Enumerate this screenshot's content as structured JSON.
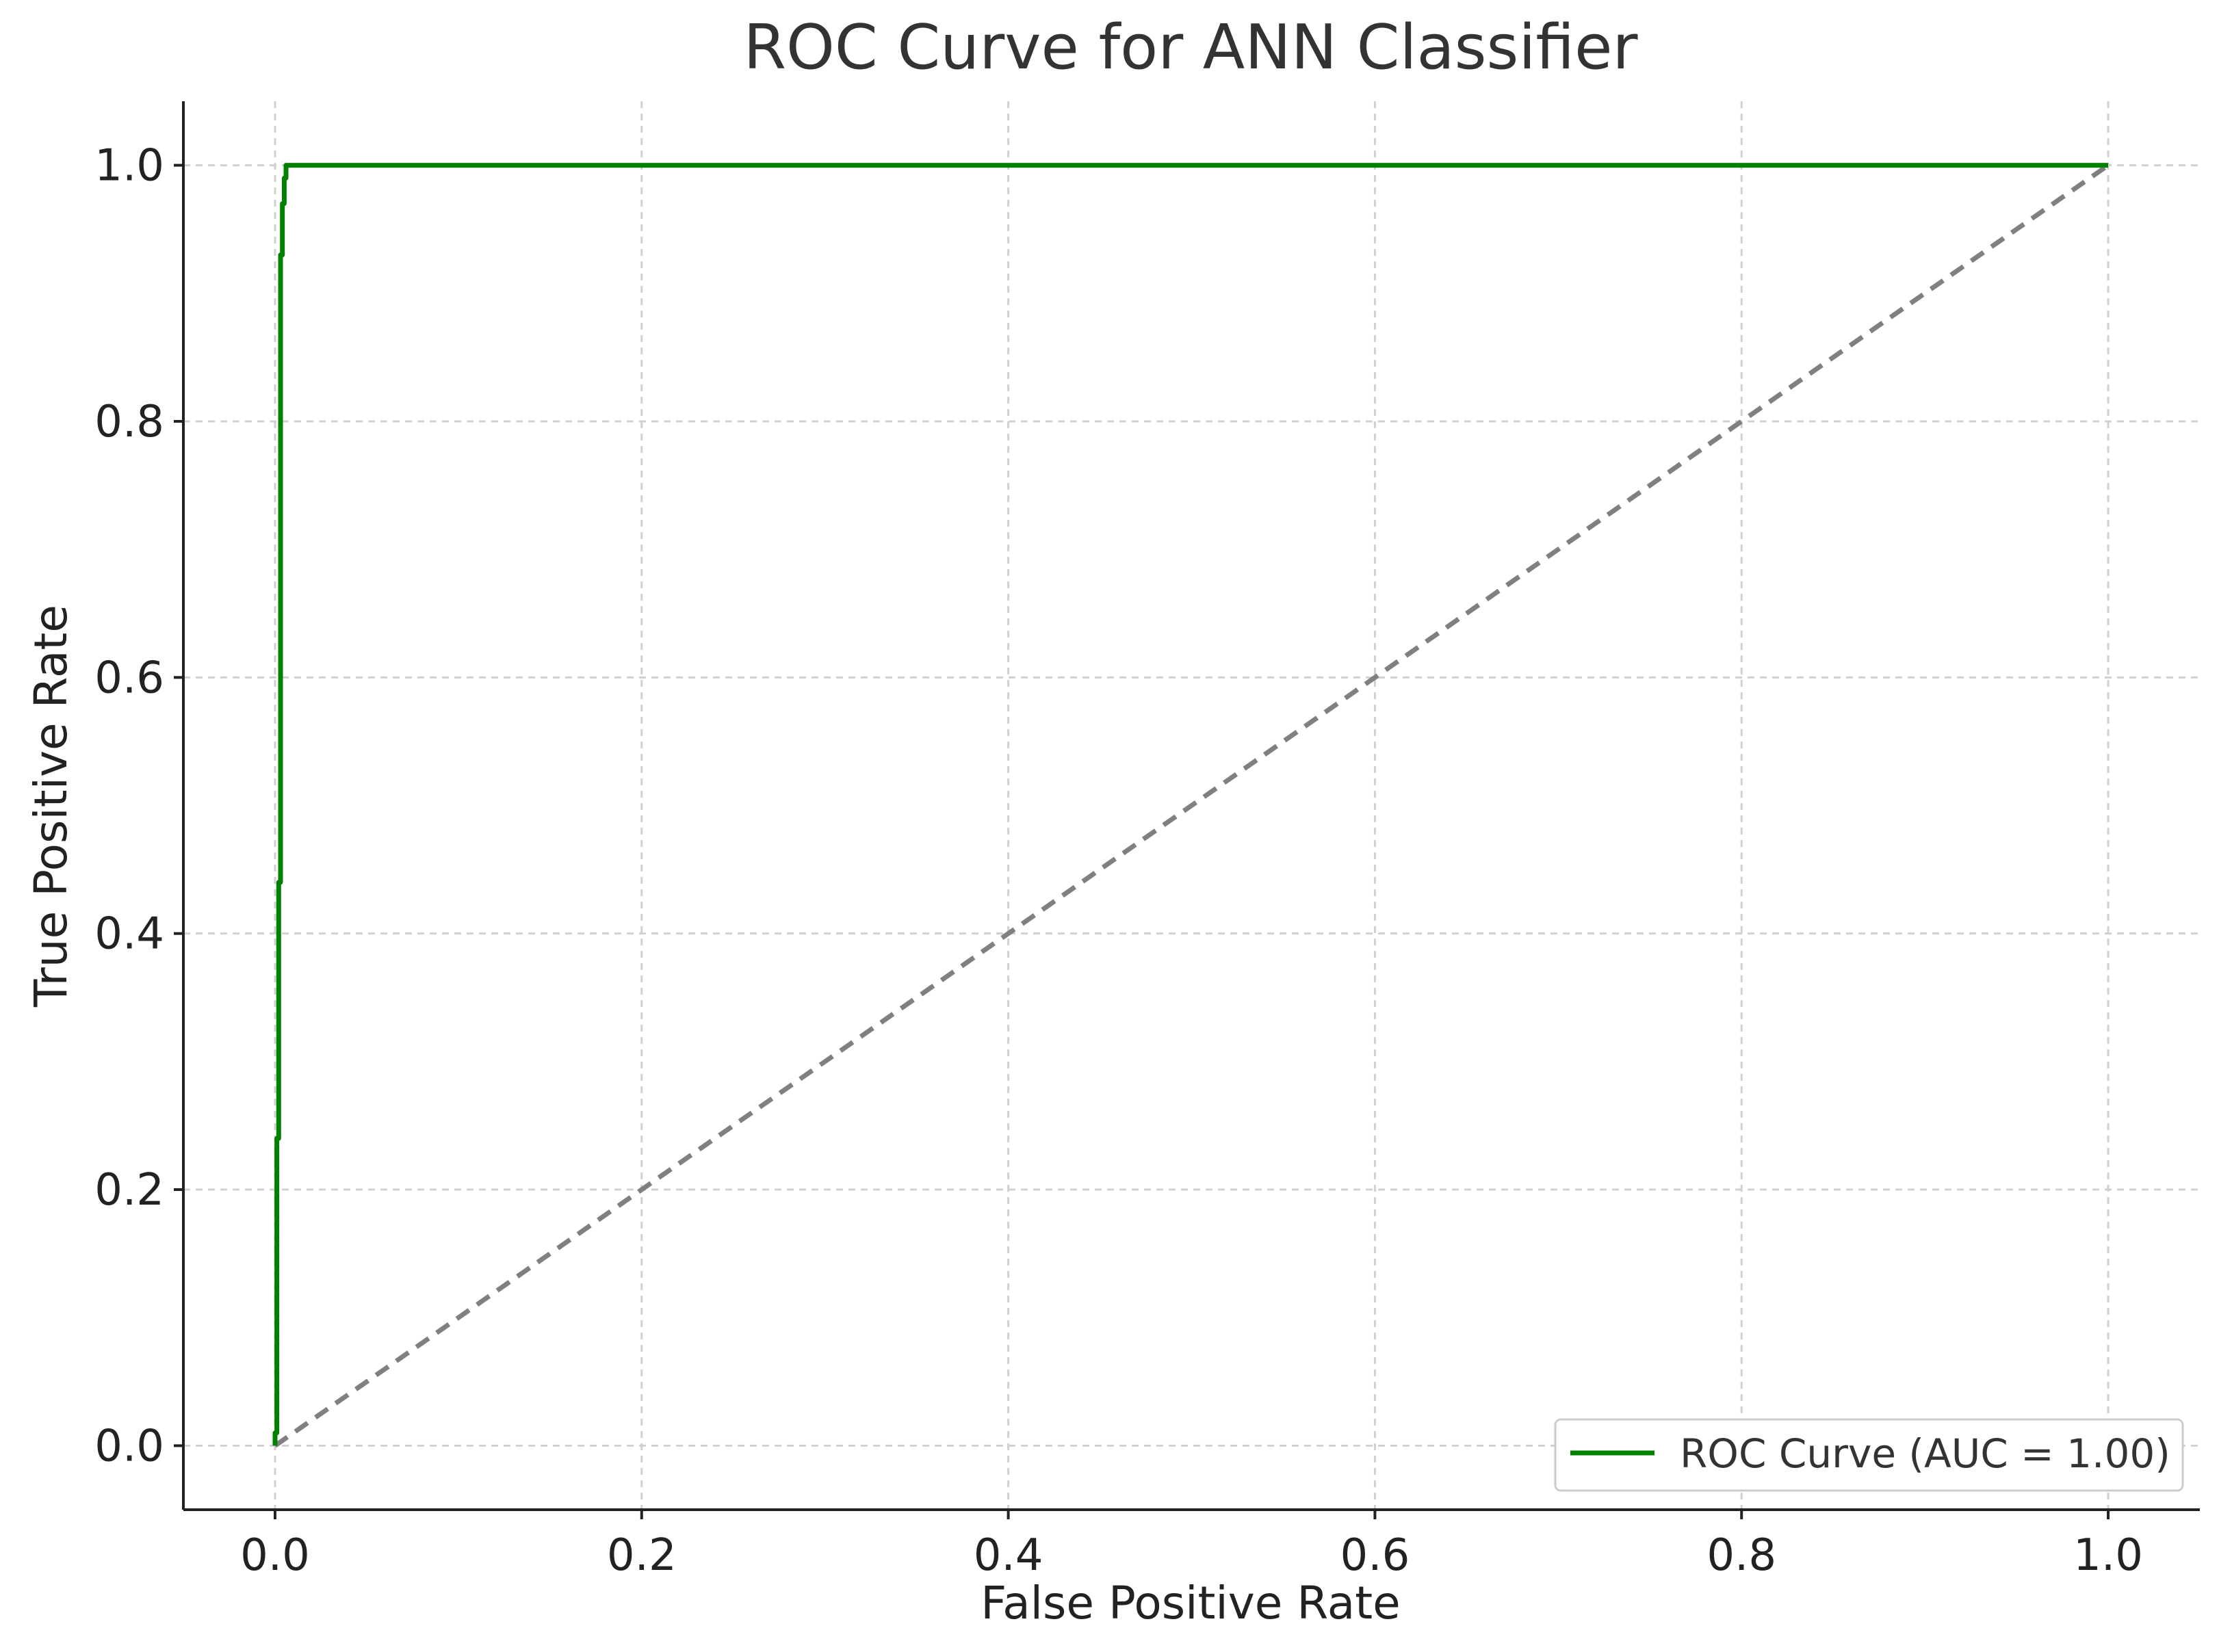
{
  "chart_data": {
    "type": "line",
    "title": "ROC Curve for ANN Classifier",
    "xlabel": "False Positive Rate",
    "ylabel": "True Positive Rate",
    "xlim": [
      -0.05,
      1.05
    ],
    "ylim": [
      -0.05,
      1.05
    ],
    "xticks": [
      0.0,
      0.2,
      0.4,
      0.6,
      0.8,
      1.0
    ],
    "yticks": [
      0.0,
      0.2,
      0.4,
      0.6,
      0.8,
      1.0
    ],
    "xtick_labels": [
      "0.0",
      "0.2",
      "0.4",
      "0.6",
      "0.8",
      "1.0"
    ],
    "ytick_labels": [
      "0.0",
      "0.2",
      "0.4",
      "0.6",
      "0.8",
      "1.0"
    ],
    "grid": true,
    "legend": {
      "position": "lower-right",
      "entries": [
        "ROC Curve (AUC = 1.00)"
      ]
    },
    "series": [
      {
        "name": "ROC Curve (AUC = 1.00)",
        "color": "#008000",
        "style": "solid",
        "x": [
          0.0,
          0.0,
          0.001,
          0.001,
          0.002,
          0.002,
          0.003,
          0.003,
          0.004,
          0.004,
          0.005,
          0.005,
          0.006,
          0.006,
          1.0
        ],
        "y": [
          0.0,
          0.01,
          0.01,
          0.24,
          0.24,
          0.44,
          0.44,
          0.93,
          0.93,
          0.97,
          0.97,
          0.99,
          0.99,
          1.0,
          1.0
        ]
      },
      {
        "color": "#808080",
        "style": "dashed",
        "x": [
          0.0,
          1.0
        ],
        "y": [
          0.0,
          1.0
        ]
      }
    ]
  }
}
